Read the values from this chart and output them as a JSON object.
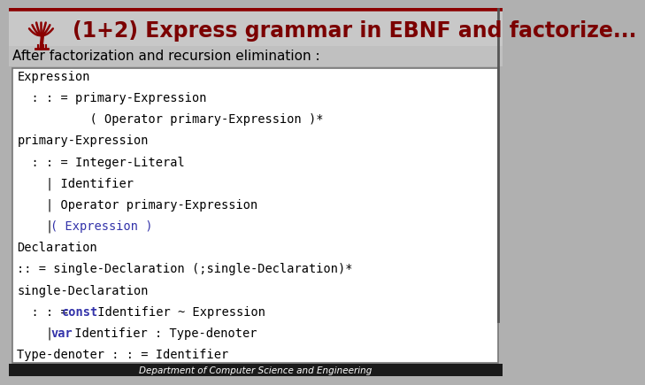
{
  "title": "(1+2) Express grammar in EBNF and factorize...",
  "subtitle": "After factorization and recursion elimination :",
  "title_color": "#7B0000",
  "subtitle_color": "#000000",
  "header_bg": "#C8C8C8",
  "slide_bg": "#B0B0B0",
  "box_bg": "#FFFFFF",
  "box_border": "#777777",
  "footer_bg": "#1A1A1A",
  "footer_text": "Department of Computer Science and Engineering",
  "footer_color": "#FFFFFF",
  "title_fontsize": 17,
  "subtitle_fontsize": 11,
  "code_fontsize": 9.8,
  "footer_fontsize": 7.5,
  "lines": [
    [
      [
        "Expression",
        "#000000",
        false
      ]
    ],
    [
      [
        "  : : = primary-Expression",
        "#000000",
        false
      ]
    ],
    [
      [
        "          ( Operator primary-Expression )*",
        "#000000",
        false
      ]
    ],
    [
      [
        "primary-Expression",
        "#000000",
        false
      ]
    ],
    [
      [
        "  : : = Integer-Literal",
        "#000000",
        false
      ]
    ],
    [
      [
        "    | Identifier",
        "#000000",
        false
      ]
    ],
    [
      [
        "    | Operator primary-Expression",
        "#000000",
        false
      ]
    ],
    [
      [
        "    | ",
        "#000000",
        false
      ],
      [
        "( Expression )",
        "#3333AA",
        false
      ]
    ],
    [
      [
        "Declaration",
        "#000000",
        false
      ]
    ],
    [
      [
        ":: = single-Declaration (;single-Declaration)*",
        "#000000",
        false
      ]
    ],
    [
      [
        "single-Declaration",
        "#000000",
        false
      ]
    ],
    [
      [
        "  : : = ",
        "#000000",
        false
      ],
      [
        "const",
        "#3333AA",
        true
      ],
      [
        " Identifier ~ Expression",
        "#000000",
        false
      ]
    ],
    [
      [
        "    | ",
        "#000000",
        false
      ],
      [
        "var",
        "#3333AA",
        true
      ],
      [
        " Identifier : Type-denoter",
        "#000000",
        false
      ]
    ],
    [
      [
        "Type-denoter : : = Identifier",
        "#000000",
        false
      ]
    ]
  ]
}
